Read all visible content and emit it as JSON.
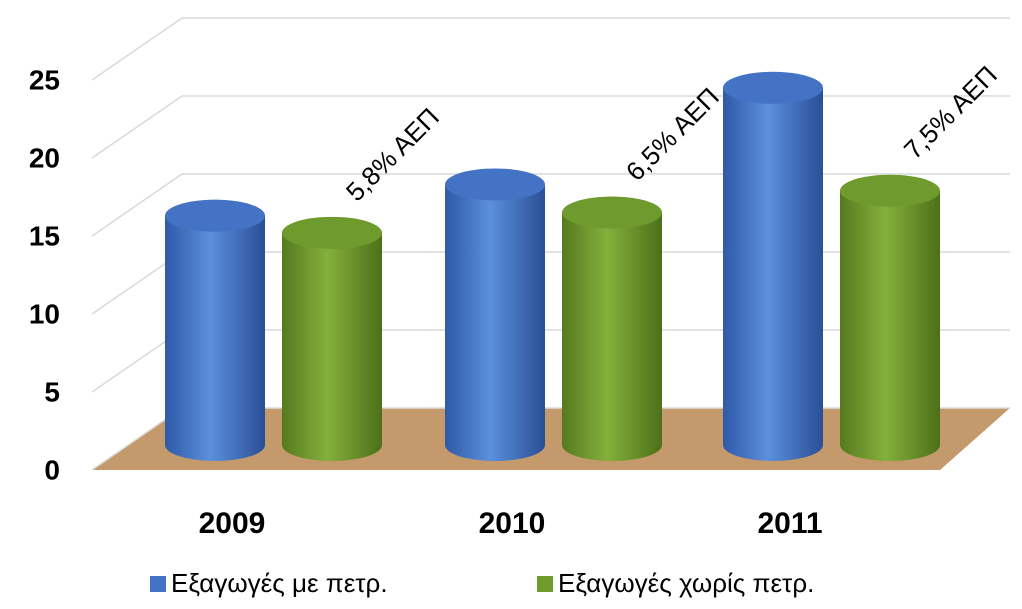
{
  "chart_data": {
    "type": "bar",
    "categories": [
      "2009",
      "2010",
      "2011"
    ],
    "series": [
      {
        "name": "Εξαγωγές με πετρ.",
        "color": "#4472c4",
        "values": [
          14.7,
          16.7,
          22.9
        ]
      },
      {
        "name": "Εξαγωγές χωρίς πετρ.",
        "color": "#6e9a2e",
        "values": [
          13.6,
          14.9,
          16.3
        ]
      }
    ],
    "annotations": [
      "5,8% ΑΕΠ",
      "6,5% ΑΕΠ",
      "7,5% ΑΕΠ"
    ],
    "ylim": [
      0,
      25
    ],
    "yticks": [
      0,
      5,
      10,
      15,
      20,
      25
    ],
    "grid": true,
    "legend": "bottom"
  }
}
